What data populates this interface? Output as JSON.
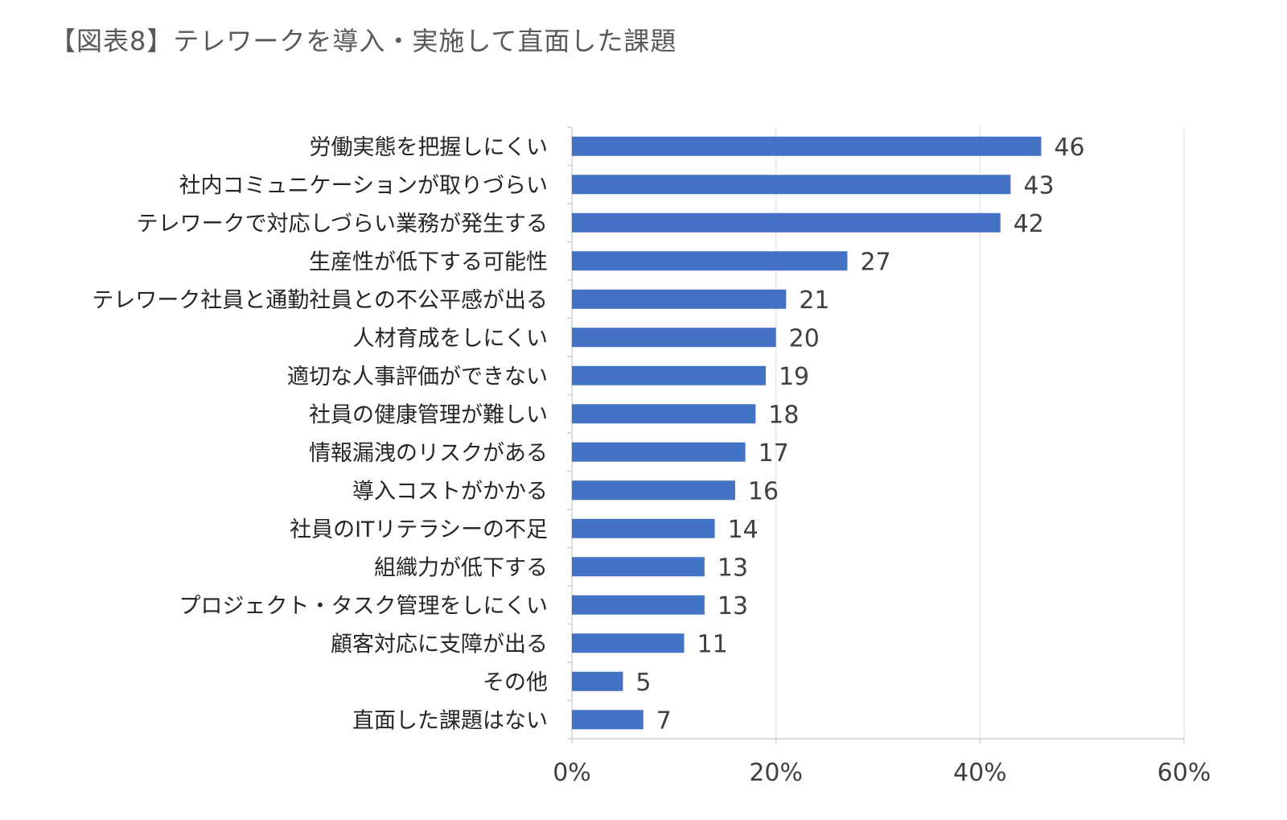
{
  "chart_data": {
    "type": "bar",
    "orientation": "horizontal",
    "title": "【図表8】テレワークを導入・実施して直面した課題",
    "categories": [
      "労働実態を把握しにくい",
      "社内コミュニケーションが取りづらい",
      "テレワークで対応しづらい業務が発生する",
      "生産性が低下する可能性",
      "テレワーク社員と通勤社員との不公平感が出る",
      "人材育成をしにくい",
      "適切な人事評価ができない",
      "社員の健康管理が難しい",
      "情報漏洩のリスクがある",
      "導入コストがかかる",
      "社員のITリテラシーの不足",
      "組織力が低下する",
      "プロジェクト・タスク管理をしにくい",
      "顧客対応に支障が出る",
      "その他",
      "直面した課題はない"
    ],
    "values": [
      46,
      43,
      42,
      27,
      21,
      20,
      19,
      18,
      17,
      16,
      14,
      13,
      13,
      11,
      5,
      7
    ],
    "xlim": [
      0,
      60
    ],
    "x_ticks": [
      "0%",
      "20%",
      "40%",
      "60%"
    ],
    "x_tick_values": [
      0,
      20,
      40,
      60
    ],
    "bar_color": "#4472C4",
    "grid": true,
    "xlabel": "",
    "ylabel": ""
  }
}
